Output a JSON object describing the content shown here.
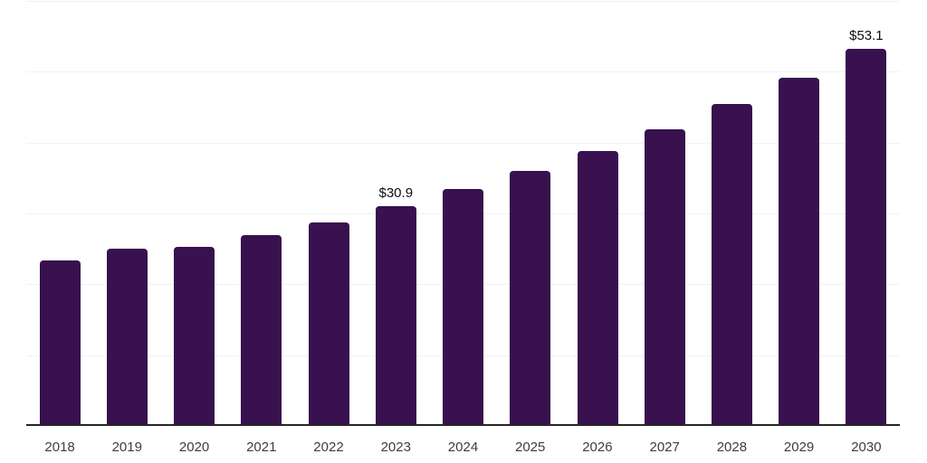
{
  "chart_data": {
    "type": "bar",
    "title": "",
    "xlabel": "",
    "ylabel": "",
    "categories": [
      "2018",
      "2019",
      "2020",
      "2021",
      "2022",
      "2023",
      "2024",
      "2025",
      "2026",
      "2027",
      "2028",
      "2029",
      "2030"
    ],
    "values": [
      23.3,
      24.9,
      25.1,
      26.8,
      28.6,
      30.9,
      33.3,
      35.9,
      38.7,
      41.8,
      45.3,
      49.0,
      53.1
    ],
    "data_labels": {
      "2023": "$30.9",
      "2030": "$53.1"
    },
    "ylim": [
      0,
      60
    ],
    "grid": true,
    "gridline_values": [
      10,
      20,
      30,
      40,
      50,
      60
    ],
    "legend": "none",
    "colors": {
      "bar": "#38114E",
      "gridline": "#F2F2F2",
      "axis_line": "#262626",
      "x_tick_label": "#3D3D3D",
      "value_label": "#0D0D0D",
      "background": "#FFFFFF"
    }
  }
}
